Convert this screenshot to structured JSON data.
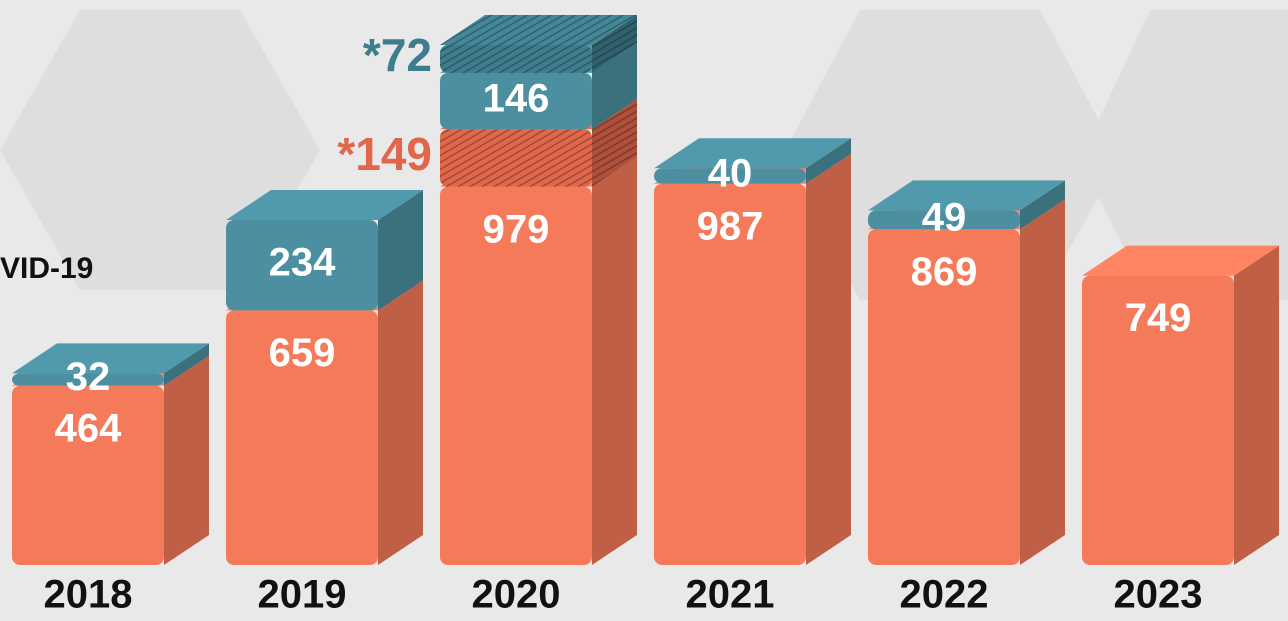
{
  "chart_data": {
    "type": "bar3d",
    "annotation": "VID-19",
    "categories": [
      "2018",
      "2019",
      "2020",
      "2021",
      "2022",
      "2023"
    ],
    "series": [
      {
        "color": "#f47a5a",
        "values": [
          464,
          659,
          979,
          987,
          869,
          749
        ]
      },
      {
        "color": "#e0674a",
        "hatch": true,
        "values": [
          null,
          null,
          149,
          null,
          null,
          null
        ],
        "value_labels": [
          null,
          null,
          "*149",
          null,
          null,
          null
        ]
      },
      {
        "color": "#4b8fa0",
        "values": [
          32,
          234,
          146,
          40,
          49,
          null
        ]
      },
      {
        "color": "#3e7d8d",
        "hatch": true,
        "values": [
          null,
          null,
          72,
          null,
          null,
          null
        ],
        "value_labels": [
          null,
          null,
          "*72",
          null,
          null,
          null
        ]
      }
    ]
  }
}
